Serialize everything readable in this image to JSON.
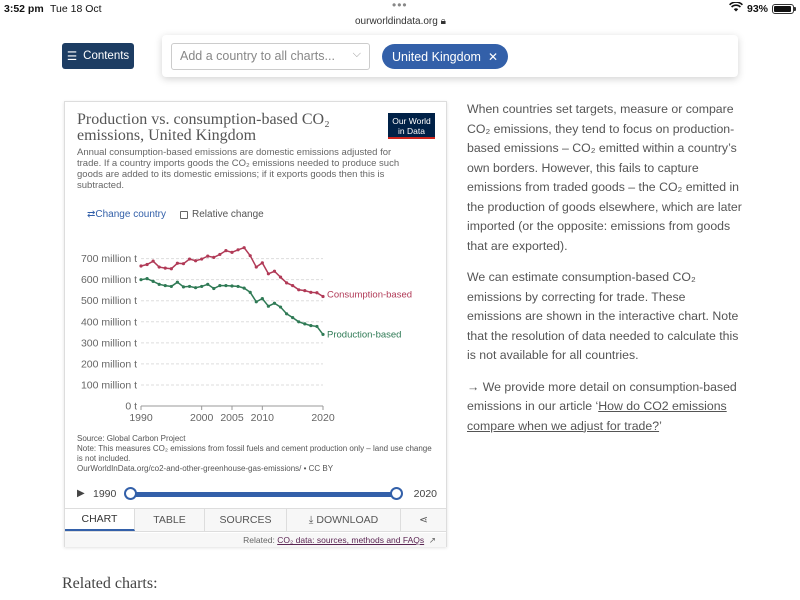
{
  "status": {
    "time": "3:52 pm",
    "date": "Tue 18 Oct",
    "url": "ourworldindata.org",
    "battery": "93%",
    "battery_level": 0.93
  },
  "header": {
    "contents_label": "Contents",
    "country_placeholder": "Add a country to all charts...",
    "selected_country": "United Kingdom"
  },
  "chart": {
    "title": "Production vs. consumption-based CO₂ emissions, United Kingdom",
    "logo_line1": "Our World",
    "logo_line2": "in Data",
    "subtitle": "Annual consumption-based emissions are domestic emissions adjusted for trade. If a country imports goods the CO₂ emissions needed to produce such goods are added to its domestic emissions; if it exports goods then this is subtracted.",
    "change_country": "Change country",
    "relative_change": "Relative change",
    "source_line1": "Source: Global Carbon Project",
    "source_line2": "Note: This measures CO₂ emissions from fossil fuels and cement production only – land use change is not included.",
    "source_line3": "OurWorldInData.org/co2-and-other-greenhouse-gas-emissions/ • CC BY",
    "timeline_start": "1990",
    "timeline_end": "2020",
    "tabs": [
      "CHART",
      "TABLE",
      "SOURCES",
      "DOWNLOAD"
    ],
    "related_prefix": "Related:",
    "related_link": "CO₂ data: sources, methods and FAQs"
  },
  "chart_data": {
    "type": "line",
    "title": "Production vs. consumption-based CO₂ emissions, United Kingdom",
    "x": [
      1990,
      1991,
      1992,
      1993,
      1994,
      1995,
      1996,
      1997,
      1998,
      1999,
      2000,
      2001,
      2002,
      2003,
      2004,
      2005,
      2006,
      2007,
      2008,
      2009,
      2010,
      2011,
      2012,
      2013,
      2014,
      2015,
      2016,
      2017,
      2018,
      2019,
      2020
    ],
    "series": [
      {
        "name": "Consumption-based",
        "color": "#b13a57",
        "values": [
          665,
          672,
          688,
          660,
          655,
          652,
          678,
          676,
          698,
          690,
          698,
          712,
          706,
          720,
          738,
          730,
          742,
          752,
          714,
          660,
          680,
          628,
          640,
          612,
          585,
          572,
          552,
          548,
          540,
          538,
          520
        ]
      },
      {
        "name": "Production-based",
        "color": "#2f7a55",
        "values": [
          600,
          605,
          592,
          578,
          572,
          568,
          588,
          566,
          568,
          562,
          568,
          578,
          558,
          572,
          572,
          570,
          568,
          560,
          540,
          495,
          510,
          474,
          488,
          470,
          438,
          420,
          400,
          390,
          382,
          378,
          340
        ]
      }
    ],
    "y_ticks": [
      "0 t",
      "100 million t",
      "200 million t",
      "300 million t",
      "400 million t",
      "500 million t",
      "600 million t",
      "700 million t"
    ],
    "x_ticks": [
      "1990",
      "2000",
      "2005",
      "2010",
      "2020"
    ],
    "ylim": [
      0,
      760
    ],
    "xlim": [
      1990,
      2020
    ],
    "grid": true
  },
  "article": {
    "p1": "When countries set targets, measure or compare CO₂ emissions, they tend to focus on production-based emissions – CO₂ emitted within a country’s own borders. However, this fails to capture emissions from traded goods – the CO₂ emitted in the production of goods elsewhere, which are later imported (or the opposite: emissions from goods that are exported).",
    "p2": "We can estimate consumption-based CO₂ emissions by correcting for trade. These emissions are shown in the interactive chart. Note that the resolution of data needed to calculate this is not available for all countries.",
    "p3_prefix": "→ We provide more detail on consumption-based emissions in our article ‘",
    "p3_link": "How do CO2 emissions compare when we adjust for trade?",
    "p3_suffix": "’"
  },
  "footer": {
    "related_charts": "Related charts:"
  }
}
